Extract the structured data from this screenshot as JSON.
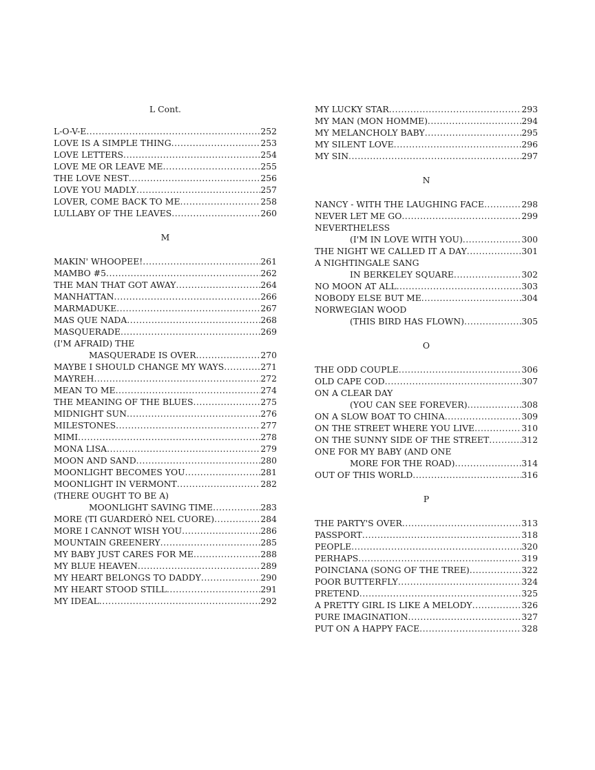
{
  "columns": [
    {
      "items": [
        {
          "heading": "L Cont."
        },
        {
          "lines": [
            "L-O-V-E"
          ],
          "page": "252"
        },
        {
          "lines": [
            "LOVE IS A SIMPLE THING"
          ],
          "page": "253"
        },
        {
          "lines": [
            "LOVE LETTERS"
          ],
          "page": "254"
        },
        {
          "lines": [
            "LOVE ME OR LEAVE ME"
          ],
          "page": "255"
        },
        {
          "lines": [
            "THE LOVE NEST"
          ],
          "page": "256"
        },
        {
          "lines": [
            "LOVE YOU MADLY"
          ],
          "page": "257"
        },
        {
          "lines": [
            "LOVER, COME BACK TO ME"
          ],
          "page": "258"
        },
        {
          "lines": [
            "LULLABY OF THE LEAVES"
          ],
          "page": "260"
        },
        {
          "heading": "M"
        },
        {
          "lines": [
            "MAKIN' WHOOPEE!"
          ],
          "page": "261"
        },
        {
          "lines": [
            "MAMBO #5"
          ],
          "page": "262"
        },
        {
          "lines": [
            "THE MAN THAT GOT AWAY"
          ],
          "page": "264"
        },
        {
          "lines": [
            "MANHATTAN"
          ],
          "page": "266"
        },
        {
          "lines": [
            "MARMADUKE"
          ],
          "page": "267"
        },
        {
          "lines": [
            "MAS QUE NADA"
          ],
          "page": "268"
        },
        {
          "lines": [
            "MASQUERADE"
          ],
          "page": "269"
        },
        {
          "lines": [
            "(I'M AFRAID) THE",
            "MASQUERADE IS OVER"
          ],
          "page": "270"
        },
        {
          "lines": [
            "MAYBE I SHOULD CHANGE MY WAYS"
          ],
          "page": "271"
        },
        {
          "lines": [
            "MAYREH"
          ],
          "page": "272"
        },
        {
          "lines": [
            "MEAN TO ME"
          ],
          "page": "274"
        },
        {
          "lines": [
            "THE MEANING OF THE BLUES"
          ],
          "page": "275"
        },
        {
          "lines": [
            "MIDNIGHT SUN"
          ],
          "page": "276"
        },
        {
          "lines": [
            "MILESTONES"
          ],
          "page": "277"
        },
        {
          "lines": [
            "MIMI"
          ],
          "page": "278"
        },
        {
          "lines": [
            "MONA LISA"
          ],
          "page": "279"
        },
        {
          "lines": [
            "MOON AND SAND"
          ],
          "page": "280"
        },
        {
          "lines": [
            "MOONLIGHT BECOMES YOU"
          ],
          "page": "281"
        },
        {
          "lines": [
            "MOONLIGHT IN VERMONT"
          ],
          "page": "282"
        },
        {
          "lines": [
            "(THERE OUGHT TO BE A)",
            "MOONLIGHT SAVING TIME"
          ],
          "page": "283"
        },
        {
          "lines": [
            "MORE (TI GUARDERÒ NEL CUORE)"
          ],
          "page": "284"
        },
        {
          "lines": [
            "MORE I CANNOT WISH YOU"
          ],
          "page": "286"
        },
        {
          "lines": [
            "MOUNTAIN GREENERY"
          ],
          "page": "285"
        },
        {
          "lines": [
            "MY BABY JUST CARES FOR ME"
          ],
          "page": "288"
        },
        {
          "lines": [
            "MY BLUE HEAVEN"
          ],
          "page": "289"
        },
        {
          "lines": [
            "MY HEART BELONGS TO DADDY"
          ],
          "page": "290"
        },
        {
          "lines": [
            "MY HEART STOOD STILL"
          ],
          "page": "291"
        },
        {
          "lines": [
            "MY IDEAL"
          ],
          "page": "292"
        }
      ]
    },
    {
      "items": [
        {
          "lines": [
            "MY LUCKY STAR"
          ],
          "page": "293"
        },
        {
          "lines": [
            "MY MAN (MON HOMME)"
          ],
          "page": "294"
        },
        {
          "lines": [
            "MY MELANCHOLY BABY"
          ],
          "page": "295"
        },
        {
          "lines": [
            "MY SILENT LOVE"
          ],
          "page": "296"
        },
        {
          "lines": [
            "MY SIN"
          ],
          "page": "297"
        },
        {
          "heading": "N"
        },
        {
          "lines": [
            "NANCY - WITH THE LAUGHING FACE"
          ],
          "page": "298"
        },
        {
          "lines": [
            "NEVER LET ME GO"
          ],
          "page": "299"
        },
        {
          "lines": [
            "NEVERTHELESS",
            "(I'M IN LOVE WITH YOU)"
          ],
          "page": "300"
        },
        {
          "lines": [
            "THE NIGHT WE CALLED IT A DAY"
          ],
          "page": "301"
        },
        {
          "lines": [
            "A NIGHTINGALE SANG",
            "IN BERKELEY SQUARE"
          ],
          "page": "302"
        },
        {
          "lines": [
            "NO MOON AT ALL"
          ],
          "page": "303"
        },
        {
          "lines": [
            "NOBODY ELSE BUT ME"
          ],
          "page": "304"
        },
        {
          "lines": [
            "NORWEGIAN WOOD",
            "(THIS BIRD HAS FLOWN)"
          ],
          "page": "305"
        },
        {
          "heading": "O"
        },
        {
          "lines": [
            "THE ODD COUPLE"
          ],
          "page": "306"
        },
        {
          "lines": [
            "OLD CAPE COD"
          ],
          "page": "307"
        },
        {
          "lines": [
            "ON A CLEAR DAY",
            "(YOU CAN SEE FOREVER)"
          ],
          "page": "308"
        },
        {
          "lines": [
            "ON A SLOW BOAT TO CHINA"
          ],
          "page": "309"
        },
        {
          "lines": [
            "ON THE STREET WHERE YOU LIVE"
          ],
          "page": "310"
        },
        {
          "lines": [
            "ON THE SUNNY SIDE OF THE STREET"
          ],
          "page": "312"
        },
        {
          "lines": [
            "ONE FOR MY BABY (AND ONE",
            "MORE FOR THE ROAD)"
          ],
          "page": "314"
        },
        {
          "lines": [
            "OUT OF THIS WORLD"
          ],
          "page": "316"
        },
        {
          "heading": "P"
        },
        {
          "lines": [
            "THE PARTY'S OVER"
          ],
          "page": "313"
        },
        {
          "lines": [
            "PASSPORT"
          ],
          "page": "318"
        },
        {
          "lines": [
            "PEOPLE"
          ],
          "page": "320"
        },
        {
          "lines": [
            "PERHAPS"
          ],
          "page": "319"
        },
        {
          "lines": [
            "POINCIANA (SONG OF THE TREE)"
          ],
          "page": "322"
        },
        {
          "lines": [
            "POOR BUTTERFLY"
          ],
          "page": "324"
        },
        {
          "lines": [
            "PRETEND"
          ],
          "page": "325"
        },
        {
          "lines": [
            "A PRETTY GIRL IS LIKE A MELODY"
          ],
          "page": "326"
        },
        {
          "lines": [
            "PURE IMAGINATION"
          ],
          "page": "327"
        },
        {
          "lines": [
            "PUT ON A HAPPY FACE"
          ],
          "page": "328"
        }
      ]
    }
  ]
}
